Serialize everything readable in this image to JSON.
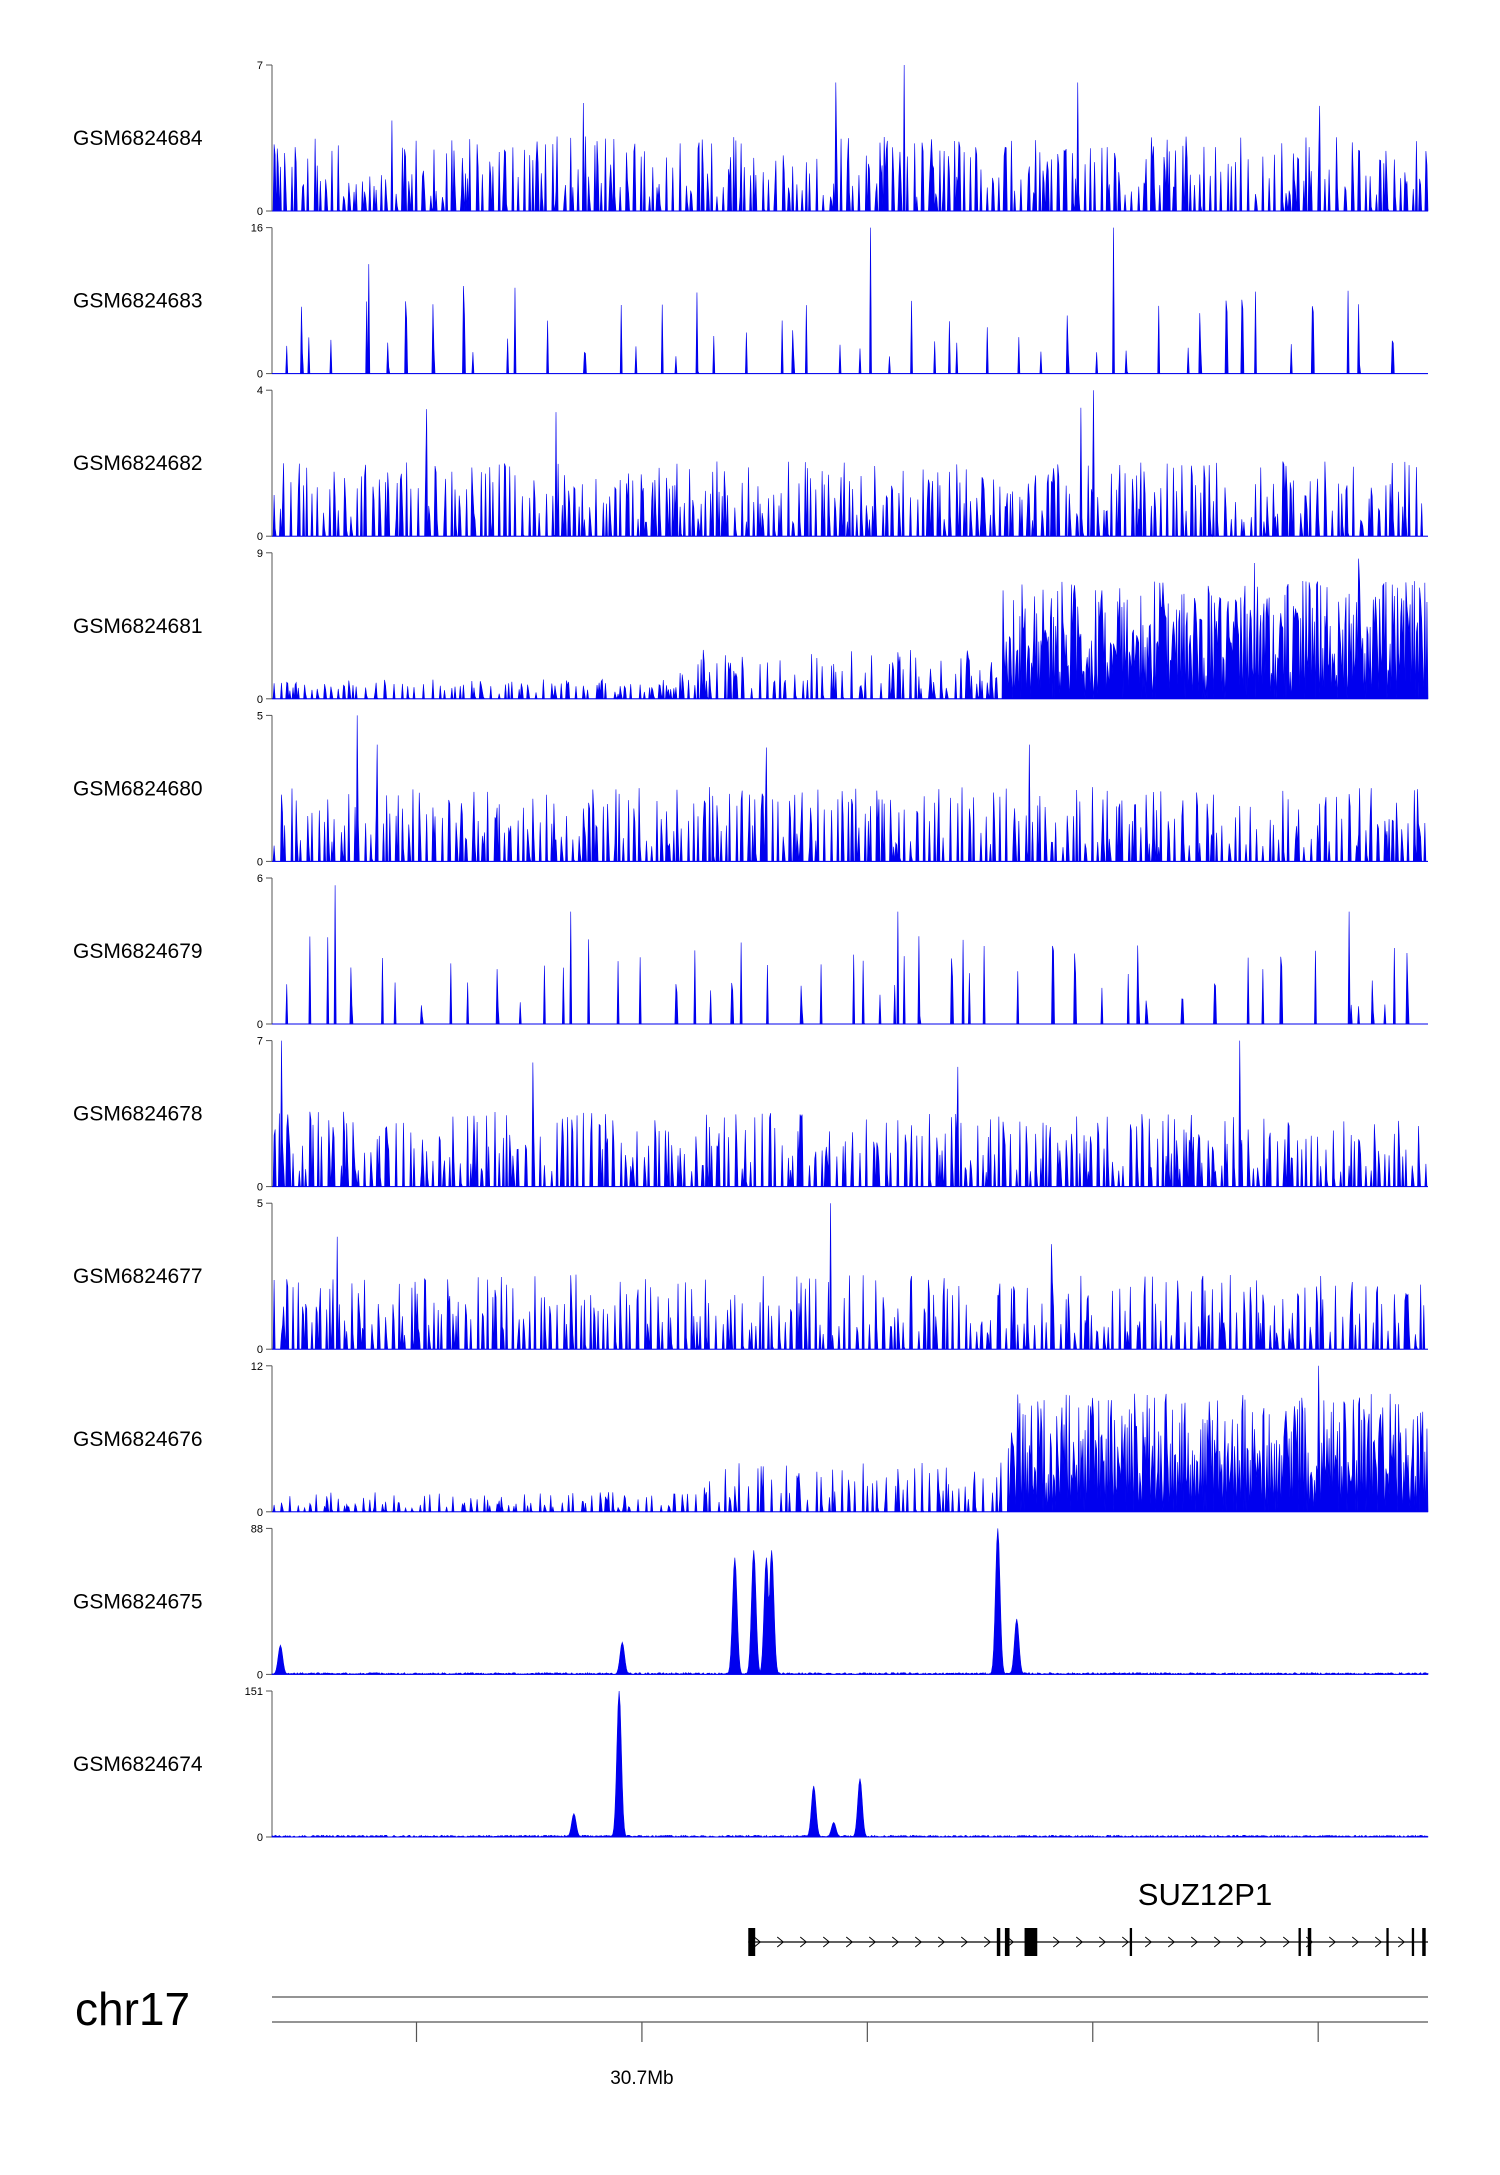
{
  "colors": {
    "signal": "#0000ee",
    "axis": "#555555",
    "gene": "#000000",
    "ideogram": "#555555"
  },
  "chart_data": {
    "type": "area",
    "tracks": [
      {
        "name": "GSM6824684",
        "ymax": 7,
        "ymin": 0,
        "pattern": "spiky",
        "peaks": [
          [
            0.104,
            0.62
          ],
          [
            0.269,
            0.74
          ],
          [
            0.488,
            0.88
          ],
          [
            0.547,
            1.0
          ],
          [
            0.697,
            0.88
          ],
          [
            0.906,
            0.72
          ]
        ]
      },
      {
        "name": "GSM6824683",
        "ymax": 16,
        "ymin": 0,
        "pattern": "sparse",
        "peaks": [
          [
            0.084,
            0.75
          ],
          [
            0.518,
            1.0
          ],
          [
            0.728,
            1.0
          ],
          [
            0.825,
            0.5
          ]
        ]
      },
      {
        "name": "GSM6824682",
        "ymax": 4,
        "ymin": 0,
        "pattern": "spiky",
        "peaks": [
          [
            0.134,
            0.87
          ],
          [
            0.246,
            0.85
          ],
          [
            0.7,
            0.88
          ],
          [
            0.711,
            1.0
          ]
        ]
      },
      {
        "name": "GSM6824681",
        "ymax": 9,
        "ymin": 0,
        "pattern": "rising",
        "peaks": [
          [
            0.85,
            0.93
          ],
          [
            0.94,
            0.96
          ]
        ]
      },
      {
        "name": "GSM6824680",
        "ymax": 5,
        "ymin": 0,
        "pattern": "spiky",
        "peaks": [
          [
            0.074,
            1.0
          ],
          [
            0.091,
            0.8
          ],
          [
            0.428,
            0.78
          ],
          [
            0.655,
            0.8
          ]
        ]
      },
      {
        "name": "GSM6824679",
        "ymax": 6,
        "ymin": 0,
        "pattern": "sparse",
        "peaks": [
          [
            0.055,
            0.95
          ],
          [
            0.258,
            0.77
          ],
          [
            0.541,
            0.77
          ],
          [
            0.932,
            0.77
          ]
        ]
      },
      {
        "name": "GSM6824678",
        "ymax": 7,
        "ymin": 0,
        "pattern": "spiky",
        "peaks": [
          [
            0.008,
            1.0
          ],
          [
            0.226,
            0.85
          ],
          [
            0.593,
            0.82
          ],
          [
            0.837,
            1.0
          ]
        ]
      },
      {
        "name": "GSM6824677",
        "ymax": 5,
        "ymin": 0,
        "pattern": "spiky",
        "peaks": [
          [
            0.056,
            0.77
          ],
          [
            0.483,
            1.0
          ],
          [
            0.674,
            0.72
          ]
        ]
      },
      {
        "name": "GSM6824676",
        "ymax": 12,
        "ymin": 0,
        "pattern": "rising",
        "peaks": [
          [
            0.757,
            0.8
          ],
          [
            0.84,
            0.8
          ],
          [
            0.905,
            1.0
          ]
        ]
      },
      {
        "name": "GSM6824675",
        "ymax": 88,
        "ymin": 0,
        "pattern": "peaks",
        "peaks": [
          [
            0.007,
            0.2
          ],
          [
            0.303,
            0.22
          ],
          [
            0.4,
            0.8
          ],
          [
            0.417,
            0.85
          ],
          [
            0.428,
            0.8
          ],
          [
            0.432,
            0.85
          ],
          [
            0.628,
            1.0
          ],
          [
            0.644,
            0.38
          ]
        ]
      },
      {
        "name": "GSM6824674",
        "ymax": 151,
        "ymin": 0,
        "pattern": "peaks",
        "peaks": [
          [
            0.261,
            0.16
          ],
          [
            0.3,
            1.0
          ],
          [
            0.469,
            0.35
          ],
          [
            0.486,
            0.1
          ],
          [
            0.509,
            0.4
          ]
        ]
      }
    ],
    "gene": {
      "name": "SUZ12P1",
      "start": 0.412,
      "end": 1.0,
      "strand": "+",
      "exons": [
        [
          0.412,
          0.418
        ],
        [
          0.627,
          0.63
        ],
        [
          0.634,
          0.638
        ],
        [
          0.651,
          0.662
        ],
        [
          0.742,
          0.744
        ],
        [
          0.888,
          0.89
        ],
        [
          0.896,
          0.899
        ],
        [
          0.964,
          0.966
        ],
        [
          0.986,
          0.988
        ],
        [
          0.995,
          0.998
        ]
      ]
    },
    "chromosome": "chr17",
    "ticks": [
      0.125,
      0.32,
      0.515,
      0.71,
      0.905
    ],
    "tick_labels": [
      {
        "pos": 0.32,
        "label": "30.7Mb"
      }
    ]
  }
}
